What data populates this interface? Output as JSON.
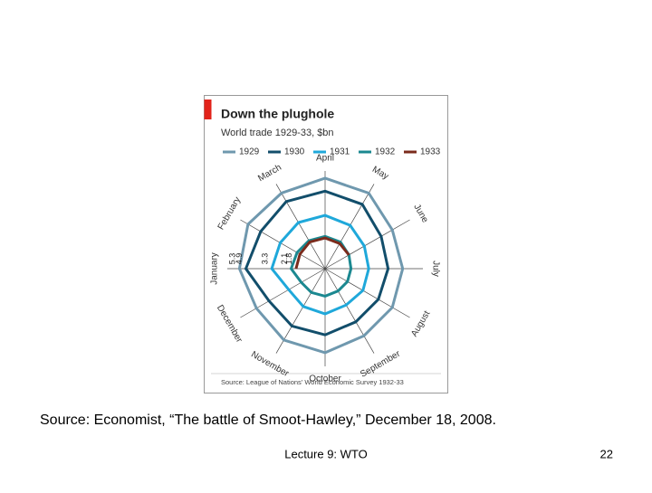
{
  "chart_data": {
    "type": "radar",
    "title": "Down the plughole",
    "subtitle": "World trade 1929-33, $bn",
    "source": "Source: League of Nations' World Economic Survey 1932-33",
    "categories": [
      "January",
      "February",
      "March",
      "April",
      "May",
      "June",
      "July",
      "August",
      "September",
      "October",
      "November",
      "December"
    ],
    "rlim": [
      0,
      5.6
    ],
    "series": [
      {
        "name": "1929",
        "color": "#6f98ae",
        "values": [
          5.3,
          5.5,
          5.4,
          5.6,
          5.4,
          4.8,
          4.8,
          4.8,
          4.8,
          5.2,
          5.1,
          4.9
        ]
      },
      {
        "name": "1930",
        "color": "#124e6b",
        "values": [
          4.9,
          4.6,
          4.8,
          4.8,
          4.6,
          4.0,
          3.9,
          3.8,
          3.8,
          4.1,
          4.1,
          4.0
        ]
      },
      {
        "name": "1931",
        "color": "#1fa8da",
        "values": [
          3.3,
          3.2,
          3.3,
          3.3,
          3.1,
          2.8,
          2.7,
          2.7,
          2.6,
          2.8,
          2.7,
          2.6
        ]
      },
      {
        "name": "1932",
        "color": "#1b8890",
        "values": [
          2.1,
          2.0,
          2.0,
          2.0,
          1.9,
          1.7,
          1.6,
          1.6,
          1.6,
          1.7,
          1.7,
          1.7
        ]
      },
      {
        "name": "1933",
        "color": "#7b2b1c",
        "values": [
          1.8,
          1.8,
          1.9,
          1.9,
          1.8,
          1.7,
          null,
          null,
          null,
          null,
          null,
          null
        ]
      }
    ]
  },
  "slide": {
    "caption": "Source:  Economist, “The battle of Smoot-Hawley,” December 18, 2008.",
    "footer": "Lecture 9:  WTO",
    "page_number": "22"
  }
}
